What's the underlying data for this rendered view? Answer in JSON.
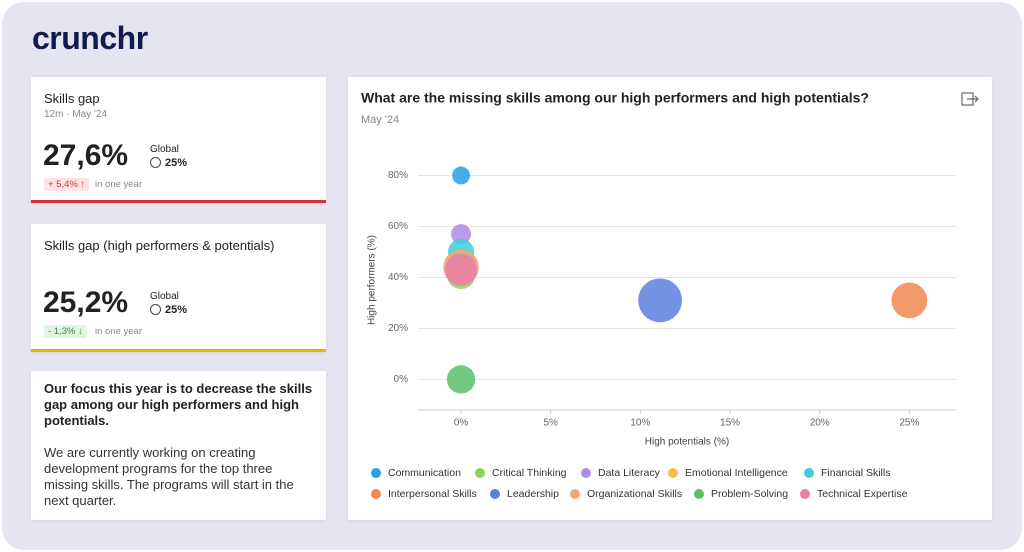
{
  "logo": "crunchr",
  "cards": [
    {
      "title": "Skills gap",
      "subtitle": "12m · May '24",
      "value": "27,6%",
      "global_label": "Global",
      "global_value": "25%",
      "change": "+ 5,4%",
      "change_note": "in one year"
    },
    {
      "title": "Skills gap (high performers & potentials)",
      "value": "25,2%",
      "global_label": "Global",
      "global_value": "25%",
      "change": "- 1,3%",
      "change_note": "in one year"
    }
  ],
  "focus": {
    "heading": "Our focus this year is to decrease the skills gap among our high performers and high potentials.",
    "body": "We are currently working on creating development programs for the top three missing skills. The programs will start in the next quarter."
  },
  "chart_data": {
    "type": "bubble",
    "title": "What are the missing skills among our high performers and high potentials?",
    "subtitle": "May '24",
    "x_label": "High potentials (%)",
    "y_label": "High performers (%)",
    "xlim": [
      -2.4,
      27.6
    ],
    "ylim": [
      -12,
      90
    ],
    "xticks": [
      {
        "value": 0,
        "label": "0%"
      },
      {
        "value": 5,
        "label": "5%"
      },
      {
        "value": 10,
        "label": "10%"
      },
      {
        "value": 15,
        "label": "15%"
      },
      {
        "value": 20,
        "label": "20%"
      },
      {
        "value": 25,
        "label": "25%"
      }
    ],
    "yticks": [
      {
        "value": 0,
        "label": "0%"
      },
      {
        "value": 20,
        "label": "20%"
      },
      {
        "value": 40,
        "label": "40%"
      },
      {
        "value": 60,
        "label": "60%"
      },
      {
        "value": 80,
        "label": "80%"
      }
    ],
    "grid": true,
    "series": [
      {
        "name": "Communication",
        "color": "#2a9ee8",
        "x": [
          0
        ],
        "y": [
          80
        ],
        "size": [
          8
        ]
      },
      {
        "name": "Critical Thinking",
        "color": "#8fcf5a",
        "x": [
          0
        ],
        "y": [
          41
        ],
        "size": [
          20
        ]
      },
      {
        "name": "Data Literacy",
        "color": "#b08be6",
        "x": [
          0
        ],
        "y": [
          57
        ],
        "size": [
          10
        ]
      },
      {
        "name": "Emotional Intelligence",
        "color": "#f5c04a",
        "x": [
          0
        ],
        "y": [
          45
        ],
        "size": [
          26
        ]
      },
      {
        "name": "Financial Skills",
        "color": "#3fcfd6",
        "x": [
          0
        ],
        "y": [
          50
        ],
        "size": [
          17
        ]
      },
      {
        "name": "Interpersonal Skills",
        "color": "#f0884f",
        "x": [
          25
        ],
        "y": [
          31
        ],
        "size": [
          32
        ]
      },
      {
        "name": "Leadership",
        "color": "#5b7fdc",
        "x": [
          11.1
        ],
        "y": [
          31
        ],
        "size": [
          48
        ]
      },
      {
        "name": "Organizational Skills",
        "color": "#f0a878",
        "x": [
          0
        ],
        "y": [
          44
        ],
        "size": [
          32
        ]
      },
      {
        "name": "Problem-Solving",
        "color": "#5bbf6a",
        "x": [
          0
        ],
        "y": [
          0
        ],
        "size": [
          20
        ]
      },
      {
        "name": "Technical Expertise",
        "color": "#e77fa8",
        "x": [
          0
        ],
        "y": [
          43
        ],
        "size": [
          26
        ]
      }
    ]
  }
}
